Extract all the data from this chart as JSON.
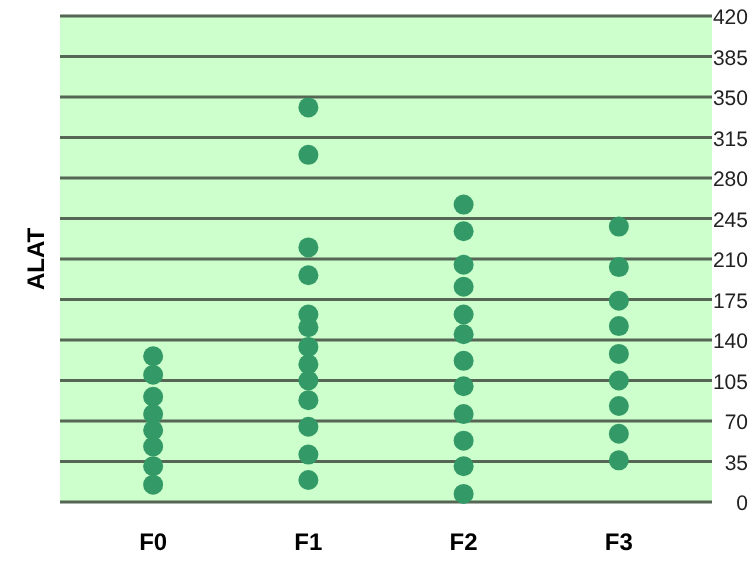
{
  "chart_data": {
    "type": "scatter",
    "ylabel": "ALAT",
    "categories": [
      "F0",
      "F1",
      "F2",
      "F3"
    ],
    "series": [
      {
        "color": "#339966",
        "x": [
          "F0",
          "F0",
          "F0",
          "F0",
          "F0",
          "F0",
          "F0",
          "F0",
          "F1",
          "F1",
          "F1",
          "F1",
          "F1",
          "F1",
          "F1",
          "F1",
          "F1",
          "F1",
          "F1",
          "F1",
          "F1",
          "F2",
          "F2",
          "F2",
          "F2",
          "F2",
          "F2",
          "F2",
          "F2",
          "F2",
          "F2",
          "F2",
          "F2",
          "F3",
          "F3",
          "F3",
          "F3",
          "F3",
          "F3",
          "F3",
          "F3",
          "F3"
        ],
        "values": [
          126,
          110,
          91,
          76,
          62,
          48,
          31,
          15,
          341,
          300,
          220,
          196,
          162,
          151,
          134,
          119,
          105,
          88,
          65,
          41,
          19,
          257,
          234,
          205,
          186,
          162,
          145,
          122,
          100,
          76,
          53,
          31,
          7,
          238,
          203,
          174,
          152,
          128,
          105,
          83,
          59,
          36
        ]
      }
    ],
    "ylim": [
      0,
      420
    ],
    "yticks": [
      0,
      35,
      70,
      105,
      140,
      175,
      210,
      245,
      280,
      315,
      350,
      385,
      420
    ],
    "grid": "y",
    "marker": "circle"
  }
}
